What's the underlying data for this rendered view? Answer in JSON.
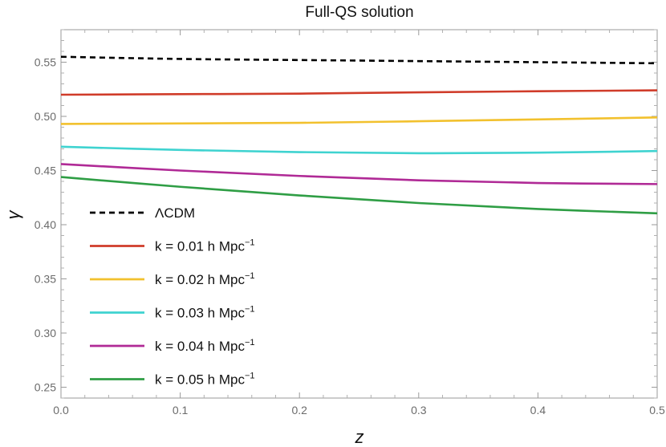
{
  "chart_data": {
    "type": "line",
    "title": "Full-QS solution",
    "xlabel": "z",
    "ylabel": "γ",
    "xlim": [
      0.0,
      0.5
    ],
    "ylim": [
      0.24,
      0.58
    ],
    "xticks": [
      "0.0",
      "0.1",
      "0.2",
      "0.3",
      "0.4",
      "0.5"
    ],
    "yticks": [
      "0.25",
      "0.30",
      "0.35",
      "0.40",
      "0.45",
      "0.50",
      "0.55"
    ],
    "grid": false,
    "legend_position": "lower-left",
    "series": [
      {
        "name": "ΛCDM",
        "label_main": "ΛCDM",
        "label_sup": "",
        "color": "#000000",
        "dashed": true,
        "x": [
          0.0,
          0.1,
          0.2,
          0.3,
          0.4,
          0.5
        ],
        "y": [
          0.555,
          0.553,
          0.552,
          0.551,
          0.55,
          0.549
        ]
      },
      {
        "name": "k = 0.01 h Mpc−1",
        "label_main": "k = 0.01 h Mpc",
        "label_sup": "−1",
        "color": "#d03c2a",
        "dashed": false,
        "x": [
          0.0,
          0.1,
          0.2,
          0.3,
          0.4,
          0.5
        ],
        "y": [
          0.52,
          0.5205,
          0.521,
          0.5222,
          0.5232,
          0.524
        ]
      },
      {
        "name": "k = 0.02 h Mpc−1",
        "label_main": "k = 0.02 h Mpc",
        "label_sup": "−1",
        "color": "#f2c12e",
        "dashed": false,
        "x": [
          0.0,
          0.1,
          0.2,
          0.3,
          0.4,
          0.5
        ],
        "y": [
          0.493,
          0.4935,
          0.494,
          0.4955,
          0.4972,
          0.499
        ]
      },
      {
        "name": "k = 0.03 h Mpc−1",
        "label_main": "k = 0.03 h Mpc",
        "label_sup": "−1",
        "color": "#3fd3d0",
        "dashed": false,
        "x": [
          0.0,
          0.1,
          0.2,
          0.3,
          0.4,
          0.5
        ],
        "y": [
          0.472,
          0.469,
          0.467,
          0.466,
          0.4665,
          0.468
        ]
      },
      {
        "name": "k = 0.04 h Mpc−1",
        "label_main": "k = 0.04 h Mpc",
        "label_sup": "−1",
        "color": "#b02a96",
        "dashed": false,
        "x": [
          0.0,
          0.1,
          0.2,
          0.3,
          0.4,
          0.5
        ],
        "y": [
          0.456,
          0.45,
          0.445,
          0.441,
          0.4385,
          0.4375
        ]
      },
      {
        "name": "k = 0.05 h Mpc−1",
        "label_main": "k = 0.05 h Mpc",
        "label_sup": "−1",
        "color": "#2f9e45",
        "dashed": false,
        "x": [
          0.0,
          0.1,
          0.2,
          0.3,
          0.4,
          0.5
        ],
        "y": [
          0.444,
          0.435,
          0.427,
          0.42,
          0.4145,
          0.4105
        ]
      }
    ]
  }
}
